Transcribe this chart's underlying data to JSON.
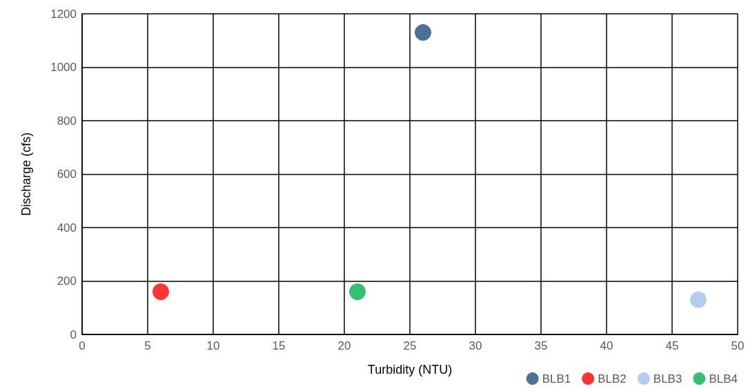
{
  "chart_data": {
    "type": "scatter",
    "xlabel": "Turbidity (NTU)",
    "ylabel": "Discharge (cfs)",
    "xlim": [
      0,
      50
    ],
    "xticks": [
      0,
      5,
      10,
      15,
      20,
      25,
      30,
      35,
      40,
      45,
      50
    ],
    "ylim": [
      0,
      1200
    ],
    "yticks": [
      0,
      200,
      400,
      600,
      800,
      1000,
      1200
    ],
    "grid": true,
    "legend": "bottom right",
    "marker": "circle",
    "series": [
      {
        "name": "BLB1",
        "color": "#1f4e79",
        "x": [
          26
        ],
        "values": [
          1130
        ]
      },
      {
        "name": "BLB2",
        "color": "#ff0000",
        "x": [
          6
        ],
        "values": [
          160
        ]
      },
      {
        "name": "BLB3",
        "color": "#9dc3e6",
        "x": [
          47
        ],
        "values": [
          130
        ]
      },
      {
        "name": "BLB4",
        "color": "#00b050",
        "x": [
          21
        ],
        "values": [
          160
        ]
      }
    ]
  }
}
